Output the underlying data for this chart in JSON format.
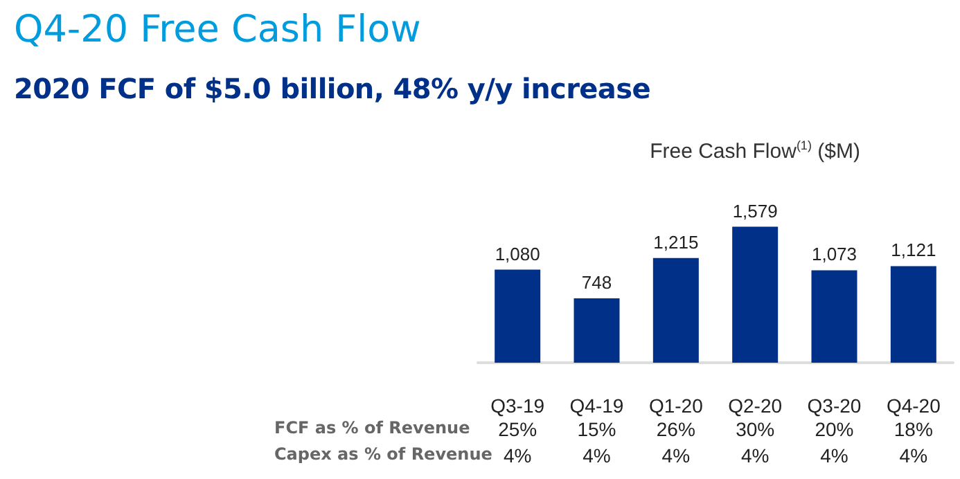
{
  "chart_data": {
    "type": "bar",
    "title": "Q4-20 Free Cash Flow",
    "subtitle": "2020 FCF of $5.0 billion, 48% y/y increase",
    "ylabel": "Free Cash Flow$^{(1)}$ ($M)",
    "categories": [
      "Q3-19",
      "Q4-19",
      "Q1-20",
      "Q2-20",
      "Q3-20",
      "Q4-20"
    ],
    "series": [
      {
        "color": "#003087",
        "values": [
          1080,
          748,
          1215,
          1579,
          1073,
          1121
        ],
        "value_labels": [
          "1,080",
          "748",
          "1,215",
          "1,579",
          "1,073",
          "1,121"
        ]
      }
    ],
    "annotations": [
      "FCF as % of Revenue",
      "25%",
      "15%",
      "26%",
      "30%",
      "20%",
      "18%",
      "Capex as % of Revenue",
      "4%",
      "4%",
      "4%",
      "4%",
      "4%",
      "4%"
    ]
  }
}
